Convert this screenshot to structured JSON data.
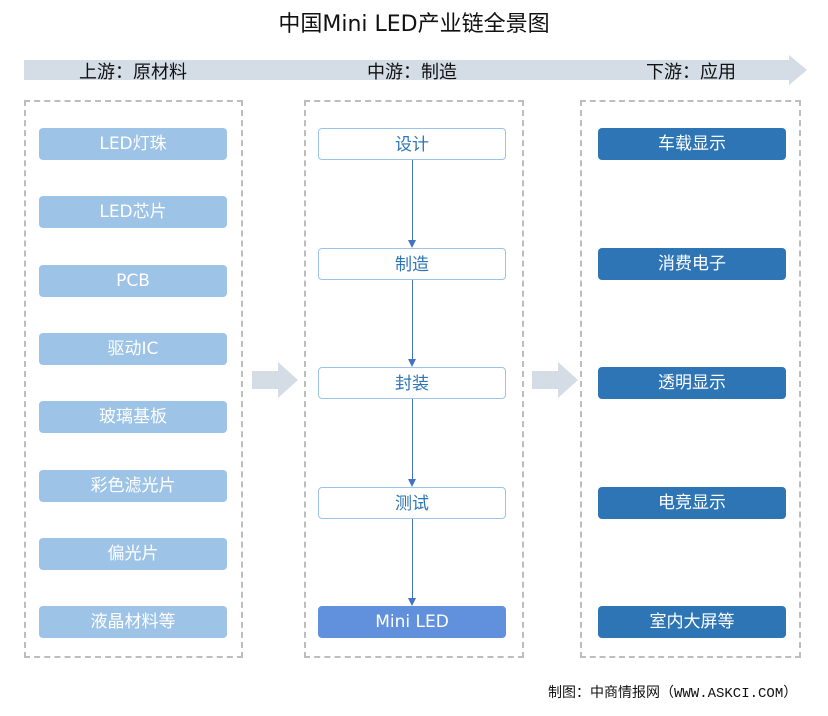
{
  "title": "中国Mini LED产业链全景图",
  "columns": {
    "upstream": "上游：原材料",
    "midstream": "中游：制造",
    "downstream": "下游：应用"
  },
  "upstream_items": [
    "LED灯珠",
    "LED芯片",
    "PCB",
    "驱动IC",
    "玻璃基板",
    "彩色滤光片",
    "偏光片",
    "液晶材料等"
  ],
  "midstream_items": [
    "设计",
    "制造",
    "封装",
    "测试",
    "Mini LED"
  ],
  "downstream_items": [
    "车载显示",
    "消费电子",
    "透明显示",
    "电竞显示",
    "室内大屏等"
  ],
  "credit": "制图：中商情报网（WWW.ASKCI.COM）",
  "colors": {
    "upstream": "#9dc3e6",
    "midstream_final": "#6190dc",
    "downstream": "#2e75b6",
    "band": "#d4dce6"
  }
}
